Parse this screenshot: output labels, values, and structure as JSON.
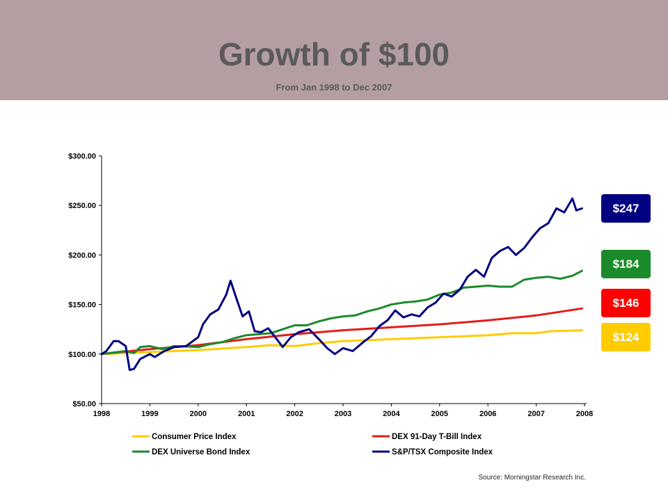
{
  "header": {
    "title": "Growth of $100",
    "subtitle": "From Jan 1998 to Dec 2007",
    "background_color": "#b49ea1"
  },
  "source": "Source: Morningstar Research Inc.",
  "badges": [
    {
      "label": "$247",
      "color": "#000080"
    },
    {
      "label": "$184",
      "color": "#1a8a2a"
    },
    {
      "label": "$146",
      "color": "#ff0000"
    },
    {
      "label": "$124",
      "color": "#ffcc00"
    }
  ],
  "chart_data": {
    "type": "line",
    "title": "Growth of $100",
    "subtitle": "From Jan 1998 to Dec 2007",
    "xlim": [
      1998,
      2008
    ],
    "ylim": [
      50,
      300
    ],
    "x_ticks": [
      1998,
      1999,
      2000,
      2001,
      2002,
      2003,
      2004,
      2005,
      2006,
      2007,
      2008
    ],
    "x_tick_labels": [
      "1998",
      "1999",
      "2000",
      "2001",
      "2002",
      "2003",
      "2004",
      "2005",
      "2006",
      "2007",
      "2008"
    ],
    "y_ticks": [
      50,
      100,
      150,
      200,
      250,
      300
    ],
    "y_tick_labels": [
      "$50.00",
      "$100.00",
      "$150.00",
      "$200.00",
      "$250.00",
      "$300.00"
    ],
    "grid": false,
    "legend_position": "bottom",
    "series": [
      {
        "name": "Consumer Price Index",
        "color": "#ffcc00",
        "points": [
          [
            1998,
            100
          ],
          [
            1999,
            102
          ],
          [
            2000,
            104
          ],
          [
            2001,
            107
          ],
          [
            2001.5,
            109
          ],
          [
            2002,
            108
          ],
          [
            2002.5,
            111
          ],
          [
            2003,
            113
          ],
          [
            2003.5,
            114
          ],
          [
            2004,
            115
          ],
          [
            2004.5,
            116
          ],
          [
            2005,
            117
          ],
          [
            2005.5,
            118
          ],
          [
            2006,
            119
          ],
          [
            2006.5,
            121
          ],
          [
            2007,
            121
          ],
          [
            2007.3,
            123
          ],
          [
            2007.95,
            124
          ]
        ]
      },
      {
        "name": "DEX 91-Day T-Bill Index",
        "color": "#e41b17",
        "points": [
          [
            1998,
            100
          ],
          [
            1999,
            105
          ],
          [
            2000,
            109
          ],
          [
            2001,
            115
          ],
          [
            2002,
            120
          ],
          [
            2003,
            124
          ],
          [
            2004,
            127
          ],
          [
            2005,
            130
          ],
          [
            2006,
            134
          ],
          [
            2007,
            139
          ],
          [
            2007.95,
            146
          ]
        ]
      },
      {
        "name": "DEX Universe Bond Index",
        "color": "#1a8a2a",
        "points": [
          [
            1998,
            100
          ],
          [
            1998.5,
            103
          ],
          [
            1998.67,
            101
          ],
          [
            1998.8,
            107
          ],
          [
            1999,
            108
          ],
          [
            1999.25,
            105
          ],
          [
            1999.5,
            108
          ],
          [
            2000,
            107
          ],
          [
            2000.25,
            110
          ],
          [
            2000.5,
            112
          ],
          [
            2000.75,
            116
          ],
          [
            2001,
            119
          ],
          [
            2001.5,
            121
          ],
          [
            2001.75,
            125
          ],
          [
            2002,
            129
          ],
          [
            2002.25,
            129
          ],
          [
            2002.5,
            133
          ],
          [
            2002.75,
            136
          ],
          [
            2003,
            138
          ],
          [
            2003.25,
            139
          ],
          [
            2003.5,
            143
          ],
          [
            2003.75,
            146
          ],
          [
            2004,
            150
          ],
          [
            2004.25,
            152
          ],
          [
            2004.5,
            153
          ],
          [
            2004.75,
            155
          ],
          [
            2005,
            160
          ],
          [
            2005.25,
            162
          ],
          [
            2005.5,
            167
          ],
          [
            2005.75,
            168
          ],
          [
            2006,
            169
          ],
          [
            2006.25,
            168
          ],
          [
            2006.5,
            168
          ],
          [
            2006.75,
            175
          ],
          [
            2007,
            177
          ],
          [
            2007.25,
            178
          ],
          [
            2007.5,
            176
          ],
          [
            2007.75,
            179
          ],
          [
            2007.95,
            184
          ]
        ]
      },
      {
        "name": "S&P/TSX Composite Index",
        "color": "#000080",
        "points": [
          [
            1998,
            100
          ],
          [
            1998.1,
            103
          ],
          [
            1998.25,
            113
          ],
          [
            1998.35,
            113
          ],
          [
            1998.5,
            108
          ],
          [
            1998.58,
            84
          ],
          [
            1998.67,
            85
          ],
          [
            1998.8,
            95
          ],
          [
            1999,
            100
          ],
          [
            1999.1,
            97
          ],
          [
            1999.3,
            103
          ],
          [
            1999.5,
            107
          ],
          [
            1999.75,
            108
          ],
          [
            2000,
            117
          ],
          [
            2000.1,
            130
          ],
          [
            2000.25,
            140
          ],
          [
            2000.42,
            145
          ],
          [
            2000.58,
            160
          ],
          [
            2000.67,
            174
          ],
          [
            2000.8,
            155
          ],
          [
            2000.92,
            138
          ],
          [
            2001.05,
            143
          ],
          [
            2001.17,
            123
          ],
          [
            2001.3,
            122
          ],
          [
            2001.45,
            126
          ],
          [
            2001.58,
            118
          ],
          [
            2001.75,
            107
          ],
          [
            2001.92,
            117
          ],
          [
            2002.08,
            122
          ],
          [
            2002.3,
            125
          ],
          [
            2002.5,
            115
          ],
          [
            2002.67,
            106
          ],
          [
            2002.83,
            100
          ],
          [
            2003,
            106
          ],
          [
            2003.2,
            103
          ],
          [
            2003.42,
            112
          ],
          [
            2003.58,
            118
          ],
          [
            2003.75,
            128
          ],
          [
            2003.92,
            134
          ],
          [
            2004.08,
            144
          ],
          [
            2004.25,
            137
          ],
          [
            2004.42,
            140
          ],
          [
            2004.58,
            138
          ],
          [
            2004.75,
            147
          ],
          [
            2004.92,
            152
          ],
          [
            2005.08,
            161
          ],
          [
            2005.25,
            158
          ],
          [
            2005.42,
            165
          ],
          [
            2005.58,
            178
          ],
          [
            2005.75,
            185
          ],
          [
            2005.92,
            178
          ],
          [
            2006.08,
            197
          ],
          [
            2006.25,
            204
          ],
          [
            2006.42,
            208
          ],
          [
            2006.58,
            200
          ],
          [
            2006.75,
            207
          ],
          [
            2006.92,
            218
          ],
          [
            2007.08,
            227
          ],
          [
            2007.25,
            232
          ],
          [
            2007.42,
            247
          ],
          [
            2007.58,
            243
          ],
          [
            2007.75,
            257
          ],
          [
            2007.83,
            245
          ],
          [
            2007.95,
            247
          ]
        ]
      }
    ]
  }
}
